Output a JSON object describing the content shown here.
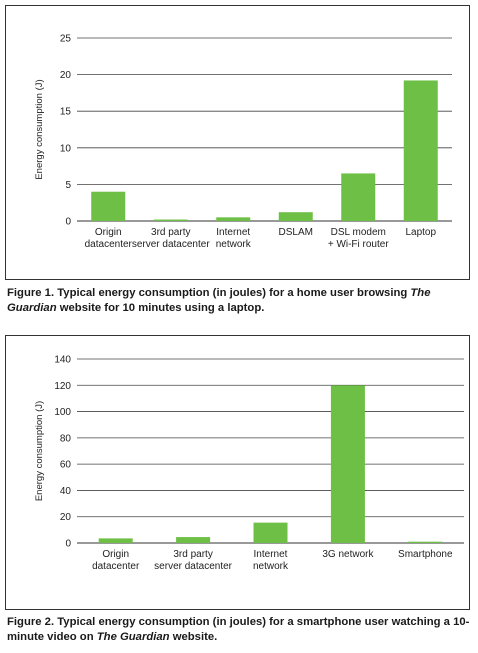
{
  "chart_data": [
    {
      "type": "bar",
      "ylabel": "Energy consumption (J)",
      "ylim": [
        0,
        25
      ],
      "yticks": [
        0,
        5,
        10,
        15,
        20,
        25
      ],
      "grid": true,
      "bar_color": "#6dbf45",
      "categories": [
        [
          "Origin",
          "datacenter"
        ],
        [
          "3rd party",
          "server datacenter"
        ],
        [
          "Internet",
          "network"
        ],
        [
          "DSLAM"
        ],
        [
          "DSL modem",
          "+ Wi-Fi router"
        ],
        [
          "Laptop"
        ]
      ],
      "values": [
        4.0,
        0.2,
        0.5,
        1.2,
        6.5,
        19.2
      ]
    },
    {
      "type": "bar",
      "ylabel": "Energy consumption (J)",
      "ylim": [
        0,
        140
      ],
      "yticks": [
        0,
        20,
        40,
        60,
        80,
        100,
        120,
        140
      ],
      "grid": true,
      "bar_color": "#6dbf45",
      "categories": [
        [
          "Origin",
          "datacenter"
        ],
        [
          "3rd party",
          "server datacenter"
        ],
        [
          "Internet",
          "network"
        ],
        [
          "3G network"
        ],
        [
          "Smartphone"
        ]
      ],
      "values": [
        3.5,
        4.5,
        15.5,
        120,
        1.0
      ]
    }
  ],
  "captions": {
    "fig1": {
      "pre": "Figure 1. Typical energy consumption (in joules) for a home user browsing ",
      "ital": "The Guardian",
      "post": " website for 10 minutes using a laptop."
    },
    "fig2": {
      "pre": "Figure 2. Typical energy consumption (in joules) for a smartphone user watching a 10-minute video on ",
      "ital": "The Guardian",
      "post": " website."
    }
  }
}
